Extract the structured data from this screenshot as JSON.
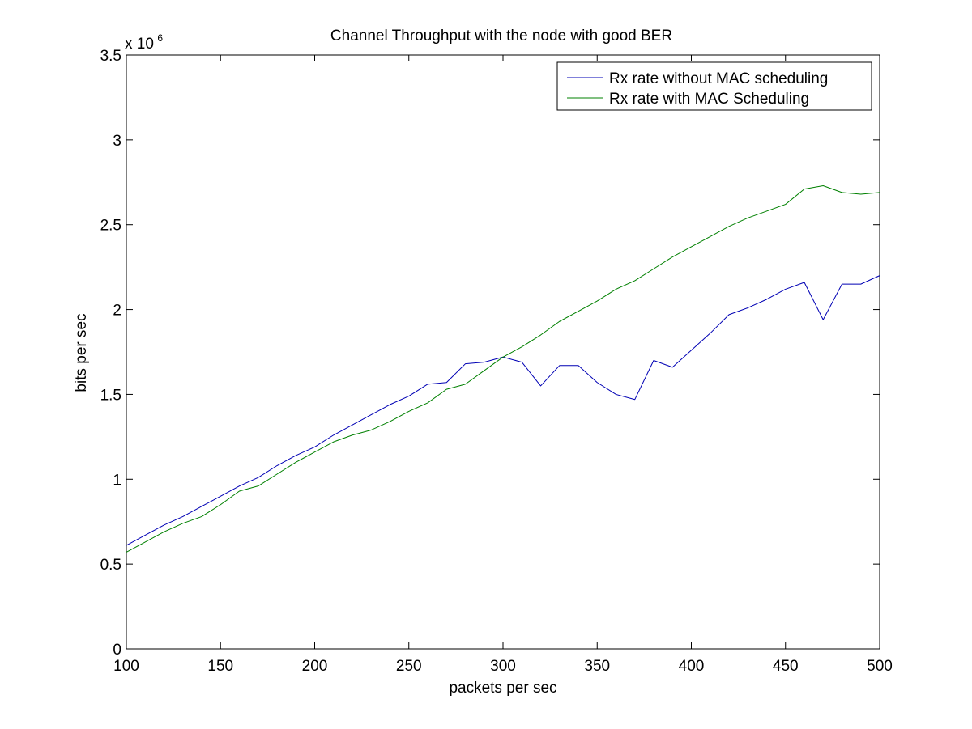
{
  "chart_data": {
    "type": "line",
    "title": "Channel Throughput with the node with good BER",
    "xlabel": "packets per sec",
    "ylabel": "bits per sec",
    "y_multiplier_label": "x 10",
    "y_multiplier_exponent": "6",
    "xlim": [
      100,
      500
    ],
    "ylim": [
      0,
      3.5
    ],
    "x_ticks": [
      "100",
      "150",
      "200",
      "250",
      "300",
      "350",
      "400",
      "450",
      "500"
    ],
    "y_ticks": [
      "0",
      "0.5",
      "1",
      "1.5",
      "2",
      "2.5",
      "3",
      "3.5"
    ],
    "grid": false,
    "legend_position": "top-right",
    "x": [
      100,
      110,
      120,
      130,
      140,
      150,
      160,
      170,
      180,
      190,
      200,
      210,
      220,
      230,
      240,
      250,
      260,
      270,
      280,
      290,
      300,
      310,
      320,
      330,
      340,
      350,
      360,
      370,
      380,
      390,
      400,
      410,
      420,
      430,
      440,
      450,
      460,
      470,
      480,
      490,
      500
    ],
    "series": [
      {
        "name": "Rx rate without MAC scheduling",
        "color": "#0000b4",
        "values": [
          0.61,
          0.67,
          0.73,
          0.78,
          0.84,
          0.9,
          0.96,
          1.01,
          1.08,
          1.14,
          1.19,
          1.26,
          1.32,
          1.38,
          1.44,
          1.49,
          1.56,
          1.57,
          1.68,
          1.69,
          1.72,
          1.69,
          1.55,
          1.67,
          1.67,
          1.57,
          1.5,
          1.47,
          1.7,
          1.66,
          1.76,
          1.86,
          1.97,
          2.01,
          2.06,
          2.12,
          2.16,
          1.94,
          2.15,
          2.15,
          2.2
        ]
      },
      {
        "name": "Rx rate with MAC Scheduling",
        "color": "#008000",
        "values": [
          0.57,
          0.63,
          0.69,
          0.74,
          0.78,
          0.85,
          0.93,
          0.96,
          1.03,
          1.1,
          1.16,
          1.22,
          1.26,
          1.29,
          1.34,
          1.4,
          1.45,
          1.53,
          1.56,
          1.64,
          1.72,
          1.78,
          1.85,
          1.93,
          1.99,
          2.05,
          2.12,
          2.17,
          2.24,
          2.31,
          2.37,
          2.43,
          2.49,
          2.54,
          2.58,
          2.62,
          2.71,
          2.73,
          2.69,
          2.68,
          2.69
        ]
      }
    ]
  }
}
